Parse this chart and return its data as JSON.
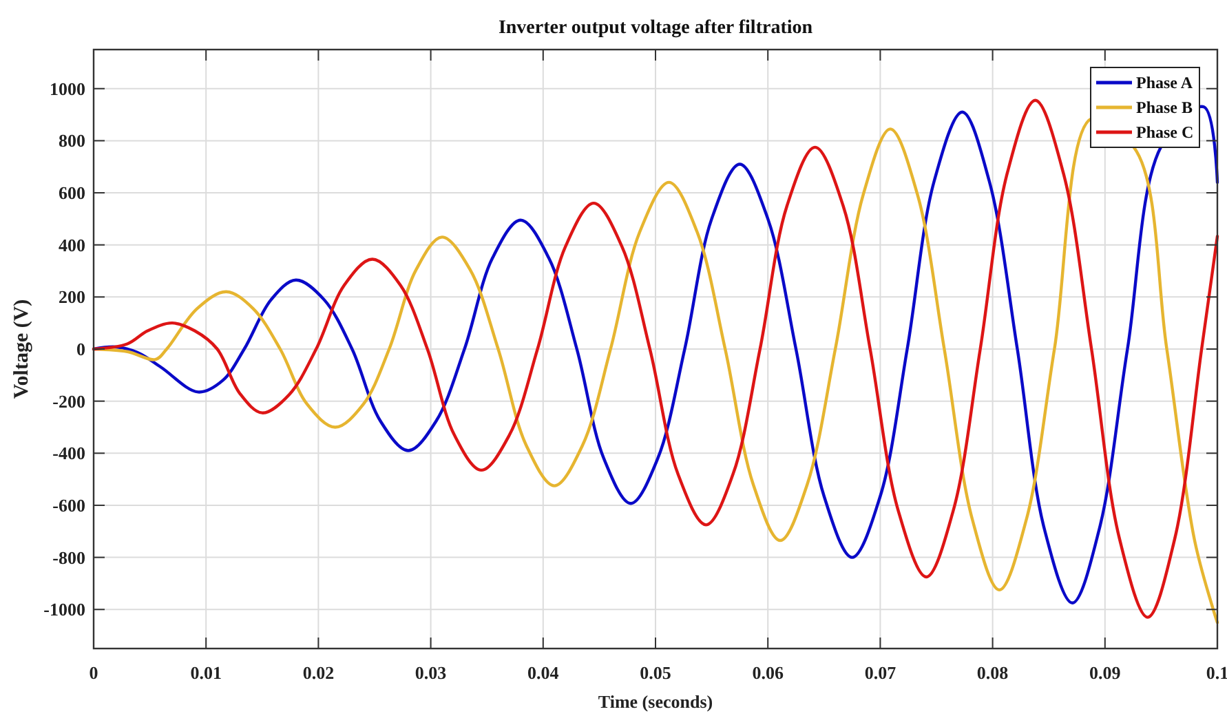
{
  "chart_data": {
    "type": "line",
    "title": "Inverter output voltage after filtration",
    "xlabel": "Time (seconds)",
    "ylabel": "Voltage (V)",
    "xlim": [
      0,
      0.1
    ],
    "xticks": [
      0,
      0.01,
      0.02,
      0.03,
      0.04,
      0.05,
      0.06,
      0.07,
      0.08,
      0.09,
      0.1
    ],
    "ylim": [
      -1150,
      1150
    ],
    "yticks": [
      -1000,
      -800,
      -600,
      -400,
      -200,
      0,
      200,
      400,
      600,
      800,
      1000
    ],
    "grid": true,
    "legend": "top right",
    "line_style": "solid",
    "marker": "none",
    "series": [
      {
        "name": "Phase A",
        "color": "#0a0ac8",
        "x": [
          0,
          0.002,
          0.004,
          0.006,
          0.0093,
          0.0115,
          0.0134,
          0.0158,
          0.018,
          0.0205,
          0.023,
          0.0255,
          0.028,
          0.0305,
          0.033,
          0.0355,
          0.038,
          0.0405,
          0.043,
          0.0454,
          0.0478,
          0.0502,
          0.0526,
          0.055,
          0.0575,
          0.06,
          0.0625,
          0.065,
          0.0675,
          0.07,
          0.0724,
          0.0748,
          0.0773,
          0.0797,
          0.0822,
          0.0846,
          0.0871,
          0.0895,
          0.092,
          0.095,
          0.0988,
          0.1
        ],
        "values": [
          0,
          8,
          -15,
          -70,
          -165,
          -120,
          0,
          190,
          265,
          190,
          0,
          -275,
          -390,
          -275,
          0,
          350,
          495,
          350,
          0,
          -420,
          -593,
          -420,
          0,
          500,
          710,
          500,
          0,
          -565,
          -800,
          -565,
          0,
          645,
          910,
          645,
          0,
          -690,
          -975,
          -690,
          0,
          778,
          930,
          640
        ]
      },
      {
        "name": "Phase B",
        "color": "#e6b530",
        "x": [
          0,
          0.003,
          0.0055,
          0.0065,
          0.0092,
          0.0118,
          0.0142,
          0.0166,
          0.019,
          0.0215,
          0.024,
          0.0263,
          0.0287,
          0.031,
          0.0335,
          0.036,
          0.0385,
          0.041,
          0.0435,
          0.046,
          0.0486,
          0.0512,
          0.0537,
          0.0562,
          0.0587,
          0.0611,
          0.0635,
          0.066,
          0.0685,
          0.0709,
          0.0733,
          0.0757,
          0.0782,
          0.0806,
          0.083,
          0.0855,
          0.0888,
          0.0928,
          0.0955,
          0.098,
          0.1
        ],
        "values": [
          0,
          -10,
          -40,
          0,
          155,
          220,
          155,
          0,
          -212,
          -300,
          -212,
          0,
          305,
          430,
          305,
          0,
          -370,
          -525,
          -370,
          0,
          450,
          640,
          450,
          0,
          -520,
          -735,
          -520,
          0,
          595,
          845,
          595,
          0,
          -655,
          -925,
          -655,
          0,
          885,
          760,
          0,
          -740,
          -1050
        ]
      },
      {
        "name": "Phase C",
        "color": "#dd1515",
        "x": [
          0,
          0.003,
          0.0048,
          0.007,
          0.009,
          0.011,
          0.013,
          0.015,
          0.0174,
          0.0198,
          0.0223,
          0.0248,
          0.0273,
          0.0297,
          0.0321,
          0.0345,
          0.037,
          0.0395,
          0.042,
          0.0445,
          0.047,
          0.0495,
          0.052,
          0.0545,
          0.0569,
          0.0593,
          0.0617,
          0.0642,
          0.0667,
          0.0691,
          0.0716,
          0.0741,
          0.0765,
          0.0789,
          0.0813,
          0.0838,
          0.0863,
          0.0888,
          0.0913,
          0.0938,
          0.0962,
          0.0986,
          0.1
        ],
        "values": [
          0,
          20,
          70,
          100,
          70,
          0,
          -170,
          -245,
          -175,
          0,
          245,
          345,
          245,
          0,
          -330,
          -465,
          -330,
          0,
          395,
          560,
          395,
          0,
          -480,
          -675,
          -480,
          0,
          550,
          775,
          550,
          0,
          -620,
          -875,
          -620,
          0,
          675,
          955,
          675,
          0,
          -730,
          -1030,
          -730,
          0,
          433
        ]
      }
    ]
  }
}
